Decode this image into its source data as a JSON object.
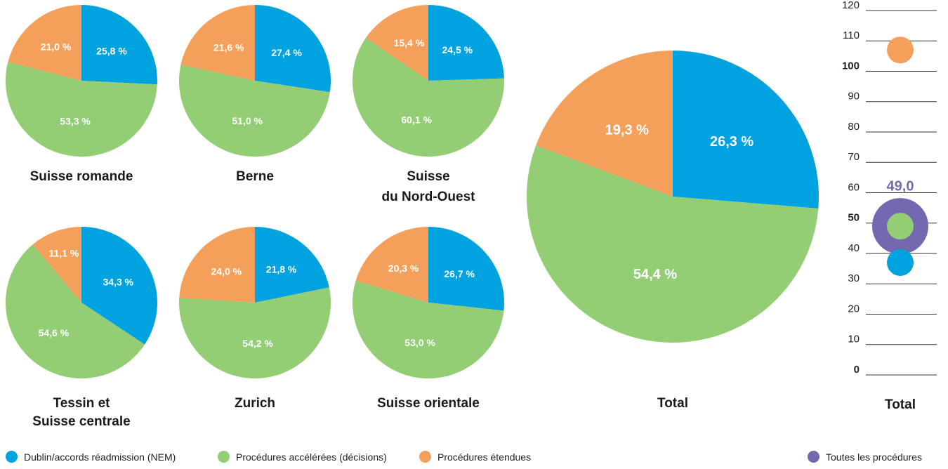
{
  "colors": {
    "dublin": "#00a3e0",
    "accelerated": "#93cd74",
    "extended": "#f4a05a",
    "all": "#7468b0"
  },
  "chart_data": [
    {
      "type": "pie",
      "title": "Suisse romande",
      "slices": [
        {
          "category": "Dublin/accords réadmission (NEM)",
          "value": 25.8,
          "label": "25,8 %"
        },
        {
          "category": "Procédures accélérées (décisions)",
          "value": 53.3,
          "label": "53,3 %"
        },
        {
          "category": "Procédures étendues",
          "value": 21.0,
          "label": "21,0 %"
        }
      ]
    },
    {
      "type": "pie",
      "title": "Berne",
      "slices": [
        {
          "category": "Dublin/accords réadmission (NEM)",
          "value": 27.4,
          "label": "27,4 %"
        },
        {
          "category": "Procédures accélérées (décisions)",
          "value": 51.0,
          "label": "51,0 %"
        },
        {
          "category": "Procédures étendues",
          "value": 21.6,
          "label": "21,6 %"
        }
      ]
    },
    {
      "type": "pie",
      "title": "Suisse du Nord-Ouest",
      "title_lines": [
        "Suisse",
        "du Nord-Ouest"
      ],
      "slices": [
        {
          "category": "Dublin/accords réadmission (NEM)",
          "value": 24.5,
          "label": "24,5 %"
        },
        {
          "category": "Procédures accélérées (décisions)",
          "value": 60.1,
          "label": "60,1 %"
        },
        {
          "category": "Procédures étendues",
          "value": 15.4,
          "label": "15,4 %"
        }
      ]
    },
    {
      "type": "pie",
      "title": "Tessin et Suisse centrale",
      "title_lines": [
        "Tessin et",
        "Suisse centrale"
      ],
      "slices": [
        {
          "category": "Dublin/accords réadmission (NEM)",
          "value": 34.3,
          "label": "34,3 %"
        },
        {
          "category": "Procédures accélérées (décisions)",
          "value": 54.6,
          "label": "54,6 %"
        },
        {
          "category": "Procédures étendues",
          "value": 11.1,
          "label": "11,1 %"
        }
      ]
    },
    {
      "type": "pie",
      "title": "Zurich",
      "slices": [
        {
          "category": "Dublin/accords réadmission (NEM)",
          "value": 21.8,
          "label": "21,8 %"
        },
        {
          "category": "Procédures accélérées (décisions)",
          "value": 54.2,
          "label": "54,2 %"
        },
        {
          "category": "Procédures étendues",
          "value": 24.0,
          "label": "24,0 %"
        }
      ]
    },
    {
      "type": "pie",
      "title": "Suisse orientale",
      "slices": [
        {
          "category": "Dublin/accords réadmission (NEM)",
          "value": 26.7,
          "label": "26,7 %"
        },
        {
          "category": "Procédures accélérées (décisions)",
          "value": 53.0,
          "label": "53,0 %"
        },
        {
          "category": "Procédures étendues",
          "value": 20.3,
          "label": "20,3 %"
        }
      ]
    },
    {
      "type": "pie",
      "title": "Total",
      "slices": [
        {
          "category": "Dublin/accords réadmission (NEM)",
          "value": 26.3,
          "label": "26,3 %"
        },
        {
          "category": "Procédures accélérées (décisions)",
          "value": 54.4,
          "label": "54,4 %"
        },
        {
          "category": "Procédures étendues",
          "value": 19.3,
          "label": "19,3 %"
        }
      ]
    },
    {
      "type": "scatter",
      "title": "Total",
      "ylim": [
        0,
        120
      ],
      "yticks": [
        0,
        10,
        20,
        30,
        40,
        50,
        60,
        70,
        80,
        90,
        100,
        110,
        120
      ],
      "bold_ticks": [
        0,
        50,
        100
      ],
      "points": [
        {
          "series": "Procédures étendues",
          "value": 107
        },
        {
          "series": "Procédures accélérées (décisions)",
          "value": 49
        },
        {
          "series": "Dublin/accords réadmission (NEM)",
          "value": 37
        }
      ],
      "highlight": {
        "series": "Toutes les procédures",
        "value": 49.0,
        "label": "49,0"
      }
    }
  ],
  "legend": [
    {
      "key": "dublin",
      "label": "Dublin/accords réadmission (NEM)"
    },
    {
      "key": "accelerated",
      "label": "Procédures accélérées (décisions)"
    },
    {
      "key": "extended",
      "label": "Procédures étendues"
    },
    {
      "key": "all",
      "label": "Toutes les procédures"
    }
  ]
}
